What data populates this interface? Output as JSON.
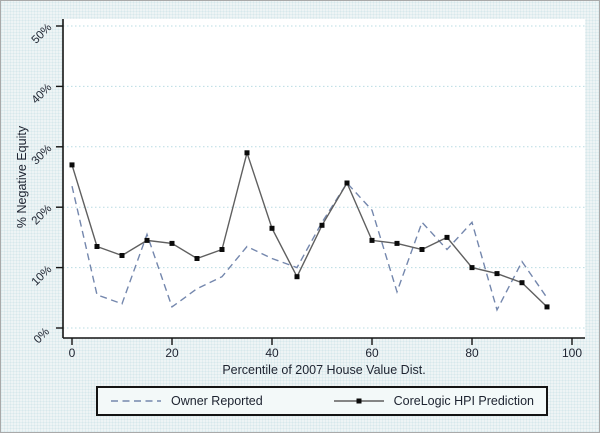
{
  "chart_data": {
    "type": "line",
    "title": "",
    "xlabel": "Percentile of 2007 House Value Dist.",
    "ylabel": "% Negative Equity",
    "x": [
      0,
      5,
      10,
      15,
      20,
      25,
      30,
      35,
      40,
      45,
      50,
      55,
      60,
      65,
      70,
      75,
      80,
      85,
      90,
      95
    ],
    "series": [
      {
        "name": "Owner Reported",
        "style": "dashed",
        "marker": "none",
        "color": "#7487ad",
        "values": [
          23.5,
          5.5,
          4,
          15.5,
          3.5,
          6.5,
          8.5,
          13.5,
          11.5,
          10,
          17.5,
          24,
          19.5,
          6,
          17.5,
          13,
          17.5,
          3,
          11,
          5
        ]
      },
      {
        "name": "CoreLogic HPI Prediction",
        "style": "solid",
        "marker": "square",
        "color": "#5f5f5f",
        "marker_color": "#0b0b0b",
        "values": [
          27,
          13.5,
          12,
          14.5,
          14,
          11.5,
          13,
          29,
          16.5,
          8.5,
          17,
          24,
          14.5,
          14,
          13,
          15,
          10,
          9,
          7.5,
          3.5
        ]
      }
    ],
    "xticks": [
      {
        "v": 0,
        "label": "0"
      },
      {
        "v": 20,
        "label": "20"
      },
      {
        "v": 40,
        "label": "40"
      },
      {
        "v": 60,
        "label": "60"
      },
      {
        "v": 80,
        "label": "80"
      },
      {
        "v": 100,
        "label": "100"
      }
    ],
    "yticks": [
      {
        "v": 0,
        "label": "0%"
      },
      {
        "v": 10,
        "label": "10%"
      },
      {
        "v": 20,
        "label": "20%"
      },
      {
        "v": 30,
        "label": "30%"
      },
      {
        "v": 40,
        "label": "40%"
      },
      {
        "v": 50,
        "label": "50%"
      }
    ],
    "xlim": [
      0,
      100
    ],
    "ylim": [
      0,
      51
    ],
    "grid": "horizontal-dotted",
    "legend_position": "bottom"
  },
  "colors": {
    "figure_background": "#eef4f5",
    "plot_background": "#ffffff",
    "gridline": "#b9dce3",
    "axis": "#141414",
    "text": "#1d2330",
    "legend_border": "#141414",
    "legend_background": "#f3f9f9"
  }
}
